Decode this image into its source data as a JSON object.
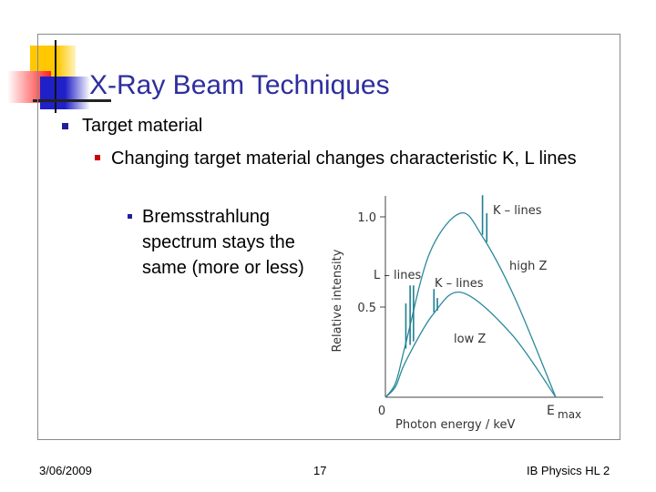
{
  "slide": {
    "title": "X-Ray Beam Techniques",
    "bullets": [
      {
        "level": 1,
        "text": "Target material"
      },
      {
        "level": 2,
        "text": "Changing target material changes characteristic K, L lines"
      },
      {
        "level": 3,
        "text": "Bremsstrahlung spectrum stays the same (more or less)"
      }
    ],
    "bullet_colors": {
      "level1": "#1f1f9e",
      "level2": "#cc0000",
      "level3": "#1f1f9e"
    },
    "title_color": "#2e2e9e"
  },
  "footer": {
    "date": "3/06/2009",
    "page": "17",
    "course": "IB Physics HL 2"
  },
  "chart_data": {
    "type": "line",
    "xlabel": "Photon energy / keV",
    "ylabel": "Relative intensity",
    "x_tick_labels": [
      "0",
      "E max"
    ],
    "y_ticks": [
      0.5,
      1.0
    ],
    "y_tick_labels": [
      "0.5",
      "1.0"
    ],
    "x_unit": "fraction of E max",
    "series": [
      {
        "name": "high Z",
        "color": "#2a8a9a",
        "points": [
          [
            0,
            0
          ],
          [
            0.06,
            0.08
          ],
          [
            0.12,
            0.3
          ],
          [
            0.26,
            0.8
          ],
          [
            0.44,
            1.02
          ],
          [
            0.57,
            0.89
          ],
          [
            0.76,
            0.55
          ],
          [
            1,
            0
          ]
        ]
      },
      {
        "name": "low Z",
        "color": "#2a8a9a",
        "points": [
          [
            0,
            0
          ],
          [
            0.06,
            0.06
          ],
          [
            0.12,
            0.2
          ],
          [
            0.28,
            0.46
          ],
          [
            0.45,
            0.58
          ],
          [
            0.74,
            0.35
          ],
          [
            1,
            0
          ]
        ]
      }
    ],
    "annotations": [
      "L – lines",
      "K – lines",
      "K – lines"
    ],
    "lines": [
      {
        "label": "L – lines",
        "x": [
          0.12,
          0.145,
          0.165
        ],
        "top": [
          0.52,
          0.62,
          0.62
        ]
      },
      {
        "label": "K – lines (low Z)",
        "x": [
          0.285,
          0.305
        ],
        "top": [
          0.6,
          0.55
        ]
      },
      {
        "label": "K – lines (high Z)",
        "x": [
          0.57,
          0.595
        ],
        "top": [
          1.12,
          1.02
        ]
      }
    ],
    "emax_label": "E",
    "emax_sub": "max"
  }
}
